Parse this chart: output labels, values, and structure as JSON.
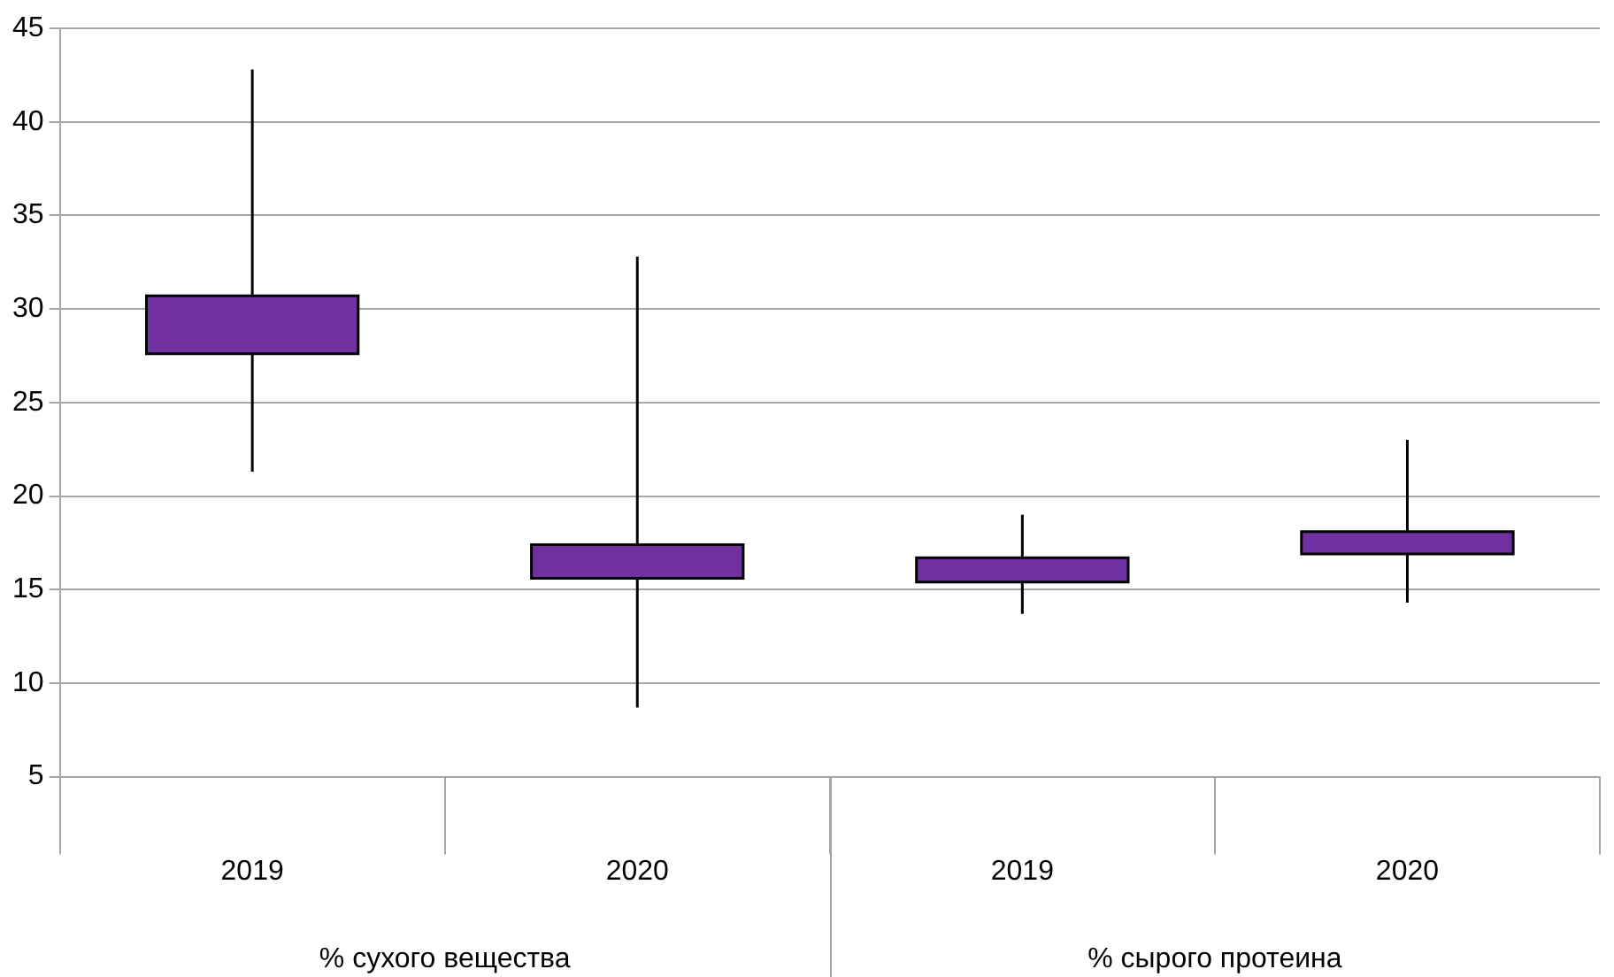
{
  "chart_data": {
    "type": "candlestick",
    "categories": [
      "2019",
      "2020",
      "2019",
      "2020"
    ],
    "ohlc": [
      [
        27.6,
        42.8,
        21.3,
        30.7
      ],
      [
        15.6,
        32.8,
        8.7,
        17.4
      ],
      [
        15.4,
        19,
        13.7,
        16.7
      ],
      [
        16.9,
        23,
        14.3,
        18.1
      ]
    ],
    "color": "#7030a0",
    "ylim": [
      5,
      45
    ],
    "yticks": [
      5,
      10,
      15,
      20,
      25,
      30,
      35,
      40,
      45
    ],
    "grid": "y",
    "annotations": [
      "% сухого вещества",
      "% сырого протеина"
    ]
  }
}
